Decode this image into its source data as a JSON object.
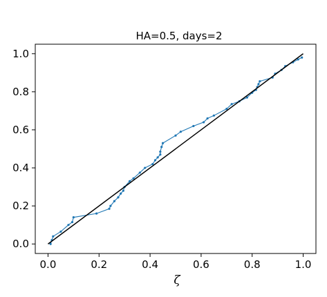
{
  "chart_data": {
    "type": "line",
    "title": "HA=0.5, days=2",
    "xlabel": "ζ",
    "ylabel": "",
    "xlim": [
      -0.05,
      1.05
    ],
    "ylim": [
      -0.05,
      1.05
    ],
    "xticks": [
      0.0,
      0.2,
      0.4,
      0.6,
      0.8,
      1.0
    ],
    "yticks": [
      0.0,
      0.2,
      0.4,
      0.6,
      0.8,
      1.0
    ],
    "xtick_labels": [
      "0.0",
      "0.2",
      "0.4",
      "0.6",
      "0.8",
      "1.0"
    ],
    "ytick_labels": [
      "0.0",
      "0.2",
      "0.4",
      "0.6",
      "0.8",
      "1.0"
    ],
    "grid": false,
    "series": [
      {
        "color": "#1f77b4",
        "marker": "dot",
        "x": [
          0.01,
          0.015,
          0.02,
          0.05,
          0.08,
          0.095,
          0.1,
          0.19,
          0.24,
          0.245,
          0.26,
          0.275,
          0.285,
          0.295,
          0.3,
          0.32,
          0.335,
          0.36,
          0.38,
          0.41,
          0.42,
          0.43,
          0.44,
          0.44,
          0.445,
          0.45,
          0.5,
          0.52,
          0.57,
          0.61,
          0.625,
          0.65,
          0.7,
          0.72,
          0.75,
          0.78,
          0.8,
          0.815,
          0.82,
          0.825,
          0.83,
          0.88,
          0.89,
          0.915,
          0.93,
          0.96,
          0.98,
          0.995
        ],
        "y": [
          0.0,
          0.02,
          0.04,
          0.065,
          0.1,
          0.115,
          0.14,
          0.16,
          0.185,
          0.2,
          0.225,
          0.245,
          0.265,
          0.28,
          0.3,
          0.33,
          0.345,
          0.375,
          0.4,
          0.42,
          0.44,
          0.455,
          0.47,
          0.485,
          0.51,
          0.53,
          0.57,
          0.59,
          0.62,
          0.64,
          0.66,
          0.675,
          0.71,
          0.735,
          0.75,
          0.77,
          0.795,
          0.81,
          0.825,
          0.84,
          0.855,
          0.875,
          0.895,
          0.915,
          0.935,
          0.955,
          0.97,
          0.98
        ]
      },
      {
        "color": "#000000",
        "marker": "none",
        "x": [
          0.0,
          1.0
        ],
        "y": [
          0.0,
          1.0
        ]
      }
    ]
  }
}
